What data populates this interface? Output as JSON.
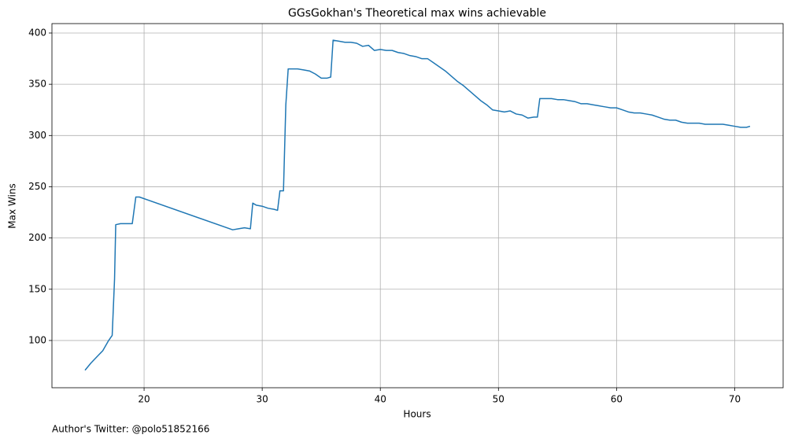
{
  "chart_data": {
    "type": "line",
    "title": "GGsGokhan's Theoretical max wins achievable",
    "xlabel": "Hours",
    "ylabel": "Max Wins",
    "annotation": "Author's Twitter: @polo51852166",
    "x": [
      15.0,
      15.5,
      16.0,
      16.5,
      17.0,
      17.3,
      17.5,
      17.6,
      18.0,
      18.5,
      19.0,
      19.3,
      19.6,
      27.5,
      28.0,
      28.5,
      29.0,
      29.2,
      29.5,
      30.0,
      30.5,
      31.0,
      31.3,
      31.5,
      31.8,
      32.0,
      32.2,
      33.0,
      33.5,
      34.0,
      34.5,
      35.0,
      35.5,
      35.8,
      36.0,
      36.5,
      37.0,
      37.5,
      38.0,
      38.5,
      39.0,
      39.5,
      40.0,
      40.5,
      41.0,
      41.5,
      42.0,
      42.5,
      43.0,
      43.5,
      44.0,
      44.5,
      45.0,
      45.5,
      46.0,
      46.5,
      47.0,
      47.5,
      48.0,
      48.5,
      49.0,
      49.5,
      50.0,
      50.5,
      51.0,
      51.5,
      52.0,
      52.5,
      53.0,
      53.3,
      53.5,
      54.0,
      54.5,
      55.0,
      55.5,
      56.0,
      56.5,
      57.0,
      57.5,
      58.0,
      58.5,
      59.0,
      59.5,
      60.0,
      60.5,
      61.0,
      61.5,
      62.0,
      62.5,
      63.0,
      63.5,
      64.0,
      64.5,
      65.0,
      65.5,
      66.0,
      66.5,
      67.0,
      67.5,
      68.0,
      68.5,
      69.0,
      69.5,
      70.0,
      70.5,
      71.0,
      71.3
    ],
    "series": [
      {
        "name": "Max Wins",
        "color": "#1f77b4",
        "values": [
          71,
          78,
          84,
          90,
          100,
          105,
          160,
          213,
          214,
          214,
          214,
          240,
          240,
          208,
          209,
          210,
          209,
          234,
          232,
          231,
          229,
          228,
          227,
          246,
          246,
          330,
          365,
          365,
          364,
          363,
          360,
          356,
          356,
          357,
          393,
          392,
          391,
          391,
          390,
          387,
          388,
          383,
          384,
          383,
          383,
          381,
          380,
          378,
          377,
          375,
          375,
          371,
          367,
          363,
          358,
          353,
          349,
          344,
          339,
          334,
          330,
          325,
          324,
          323,
          324,
          321,
          320,
          317,
          318,
          318,
          336,
          336,
          336,
          335,
          335,
          334,
          333,
          331,
          331,
          330,
          329,
          328,
          327,
          327,
          325,
          323,
          322,
          322,
          321,
          320,
          318,
          316,
          315,
          315,
          313,
          312,
          312,
          312,
          311,
          311,
          311,
          311,
          310,
          309,
          308,
          308,
          309
        ]
      }
    ],
    "xlim": [
      12.2,
      74.1
    ],
    "ylim": [
      53.9,
      409.2
    ],
    "xticks": [
      20,
      30,
      40,
      50,
      60,
      70
    ],
    "yticks": [
      100,
      150,
      200,
      250,
      300,
      350,
      400
    ],
    "grid": true
  }
}
